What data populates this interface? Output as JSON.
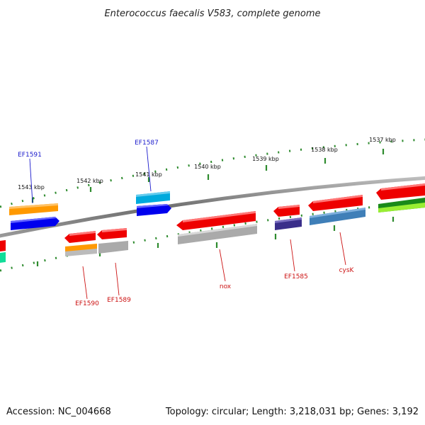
{
  "title": "Enterococcus faecalis V583, complete genome",
  "footer": {
    "accession": "Accession: NC_004668",
    "summary": "Topology: circular; Length: 3,218,031 bp; Genes: 3,192"
  },
  "tick_labels": [
    "1543 kbp",
    "1542 kbp",
    "1541 kbp",
    "1540 kbp",
    "1539 kbp",
    "1538 kbp",
    "1537 kbp"
  ],
  "gene_labels": {
    "outer": [
      "EF1591",
      "EF1587"
    ],
    "inner": [
      "EF1590",
      "EF1589",
      "nox",
      "EF1585",
      "cysK"
    ]
  },
  "colors": {
    "outer_label": "#1a1acc",
    "inner_label": "#cc1111",
    "tick": "#2e8b2e",
    "backbone": "#777777"
  }
}
